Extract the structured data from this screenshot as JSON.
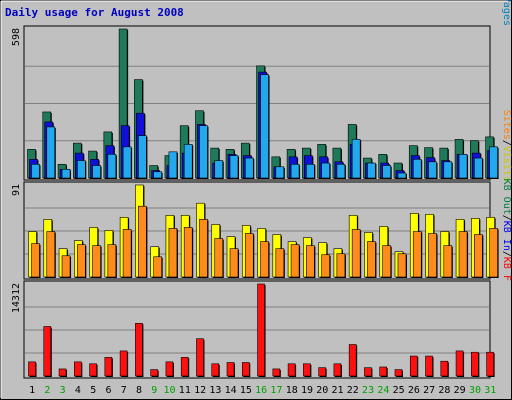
{
  "chart_data": {
    "type": "bar",
    "title": "Daily usage for August 2008",
    "categories": [
      "1",
      "2",
      "3",
      "4",
      "5",
      "6",
      "7",
      "8",
      "9",
      "10",
      "11",
      "12",
      "13",
      "14",
      "15",
      "16",
      "17",
      "18",
      "19",
      "20",
      "21",
      "22",
      "23",
      "24",
      "25",
      "26",
      "27",
      "28",
      "29",
      "30",
      "31"
    ],
    "weekend_days": [
      "2",
      "3",
      "9",
      "10",
      "16",
      "17",
      "23",
      "24",
      "30",
      "31"
    ],
    "panels": [
      {
        "name": "hits",
        "max_label": "598",
        "ylim": [
          0,
          598
        ],
        "legend": [
          {
            "label": "Pages",
            "color": "#0080c0"
          },
          {
            "label": "Files",
            "color": "#0000ff"
          },
          {
            "label": "Hits",
            "color": "#008040"
          }
        ],
        "series": [
          {
            "name": "Hits",
            "color": "#1f7a5a",
            "values": [
              115,
              265,
              55,
              140,
              108,
              185,
              598,
              395,
              50,
              90,
              210,
              270,
              120,
              115,
              140,
              450,
              85,
              115,
              120,
              135,
              120,
              215,
              80,
              95,
              60,
              130,
              122,
              120,
              155,
              150,
              165
            ]
          },
          {
            "name": "Files",
            "color": "#1010d8",
            "values": [
              75,
              225,
              35,
              100,
              75,
              130,
              210,
              260,
              30,
              50,
              100,
              215,
              60,
              95,
              90,
              425,
              45,
              85,
              90,
              85,
              65,
              135,
              60,
              60,
              30,
              90,
              82,
              70,
              95,
              100,
              110
            ]
          },
          {
            "name": "Pages",
            "color": "#22a8ec",
            "values": [
              55,
              205,
              35,
              70,
              50,
              95,
              125,
              170,
              25,
              105,
              135,
              210,
              70,
              90,
              80,
              415,
              45,
              55,
              55,
              60,
              55,
              155,
              60,
              50,
              20,
              75,
              65,
              65,
              95,
              80,
              125
            ]
          }
        ]
      },
      {
        "name": "visits",
        "max_label": "91",
        "ylim": [
          0,
          91
        ],
        "legend": [
          {
            "label": "Visits",
            "color": "#c8c800"
          },
          {
            "label": "Sites",
            "color": "#ff8000"
          }
        ],
        "series": [
          {
            "name": "Visits",
            "color": "#ffff00",
            "values": [
              45,
              57,
              28,
              36,
              49,
              46,
              59,
              91,
              30,
              61,
              61,
              73,
              52,
              40,
              51,
              48,
              42,
              35,
              39,
              34,
              28,
              61,
              44,
              50,
              25,
              63,
              62,
              45,
              57,
              58,
              59
            ]
          },
          {
            "name": "Sites",
            "color": "#ff8c1a",
            "values": [
              33,
              45,
              21,
              32,
              31,
              32,
              47,
              70,
              20,
              48,
              49,
              57,
              38,
              28,
              43,
              35,
              28,
              32,
              31,
              22,
              23,
              47,
              35,
              31,
              23,
              45,
              43,
              31,
              45,
              42,
              48
            ]
          }
        ]
      },
      {
        "name": "kbytes",
        "max_label": "14312",
        "ylim": [
          0,
          14312
        ],
        "legend": [
          {
            "label": "KB F",
            "color": "#ff0000"
          },
          {
            "label": "KB In",
            "color": "#0000ff"
          },
          {
            "label": "KB Out",
            "color": "#008040"
          }
        ],
        "series": [
          {
            "name": "KB F",
            "color": "#ff1010",
            "values": [
              2200,
              7700,
              1100,
              2200,
              1900,
              2900,
              3900,
              8200,
              1000,
              2200,
              2900,
              5800,
              1900,
              2100,
              2100,
              14312,
              1100,
              1900,
              1900,
              1300,
              1900,
              4900,
              1300,
              1400,
              1000,
              3100,
              3100,
              2300,
              3900,
              3700,
              3700
            ]
          }
        ]
      }
    ]
  }
}
